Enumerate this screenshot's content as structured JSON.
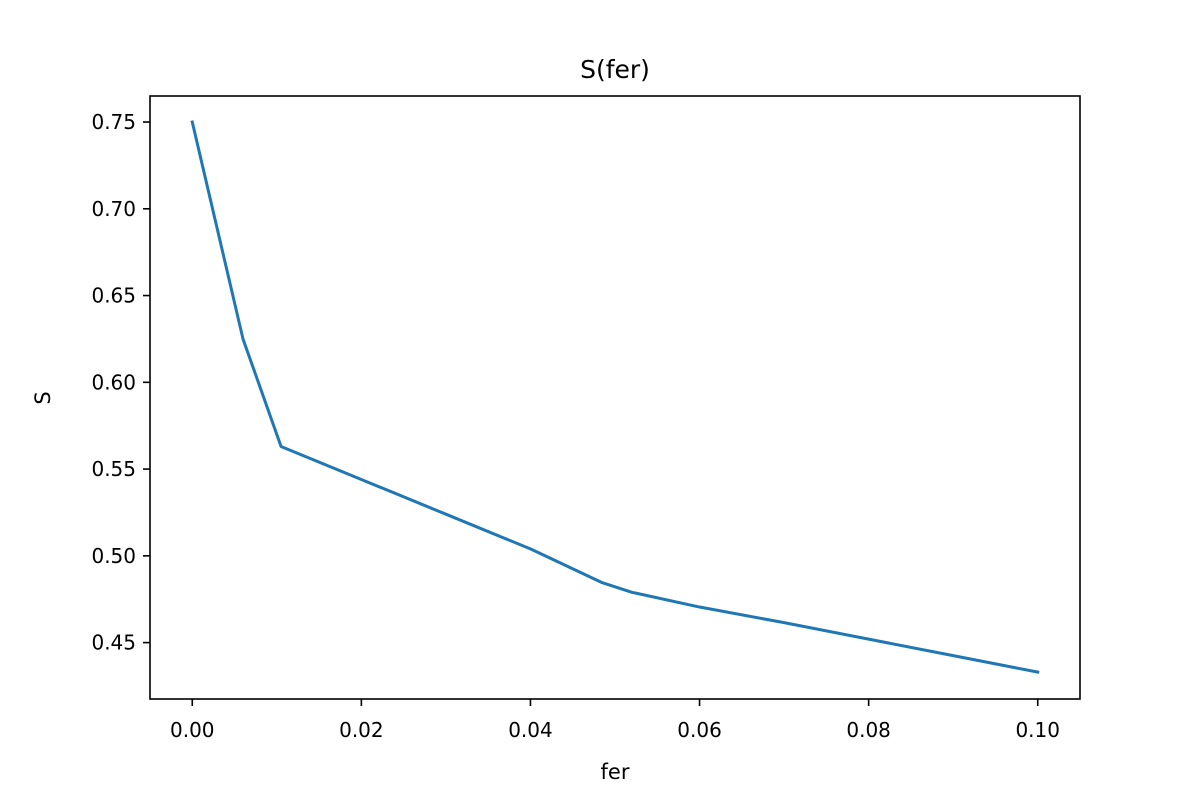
{
  "chart_data": {
    "type": "line",
    "title": "S(fer)",
    "xlabel": "fer",
    "ylabel": "S",
    "xlim": [
      -0.005,
      0.105
    ],
    "ylim": [
      0.4175,
      0.765
    ],
    "xticks": [
      {
        "value": 0.0,
        "label": "0.00"
      },
      {
        "value": 0.02,
        "label": "0.02"
      },
      {
        "value": 0.04,
        "label": "0.04"
      },
      {
        "value": 0.06,
        "label": "0.06"
      },
      {
        "value": 0.08,
        "label": "0.08"
      },
      {
        "value": 0.1,
        "label": "0.10"
      }
    ],
    "yticks": [
      {
        "value": 0.45,
        "label": "0.45"
      },
      {
        "value": 0.5,
        "label": "0.50"
      },
      {
        "value": 0.55,
        "label": "0.55"
      },
      {
        "value": 0.6,
        "label": "0.60"
      },
      {
        "value": 0.65,
        "label": "0.65"
      },
      {
        "value": 0.7,
        "label": "0.70"
      },
      {
        "value": 0.75,
        "label": "0.75"
      }
    ],
    "grid": false,
    "series": [
      {
        "color": "#1f77b4",
        "x": [
          0.0,
          0.006,
          0.0105,
          0.02,
          0.03,
          0.04,
          0.0485,
          0.052,
          0.06,
          0.07,
          0.08,
          0.09,
          0.1
        ],
        "y": [
          0.75,
          0.625,
          0.563,
          0.544,
          0.524,
          0.504,
          0.4845,
          0.479,
          0.4705,
          0.4615,
          0.452,
          0.4425,
          0.433
        ]
      }
    ]
  }
}
